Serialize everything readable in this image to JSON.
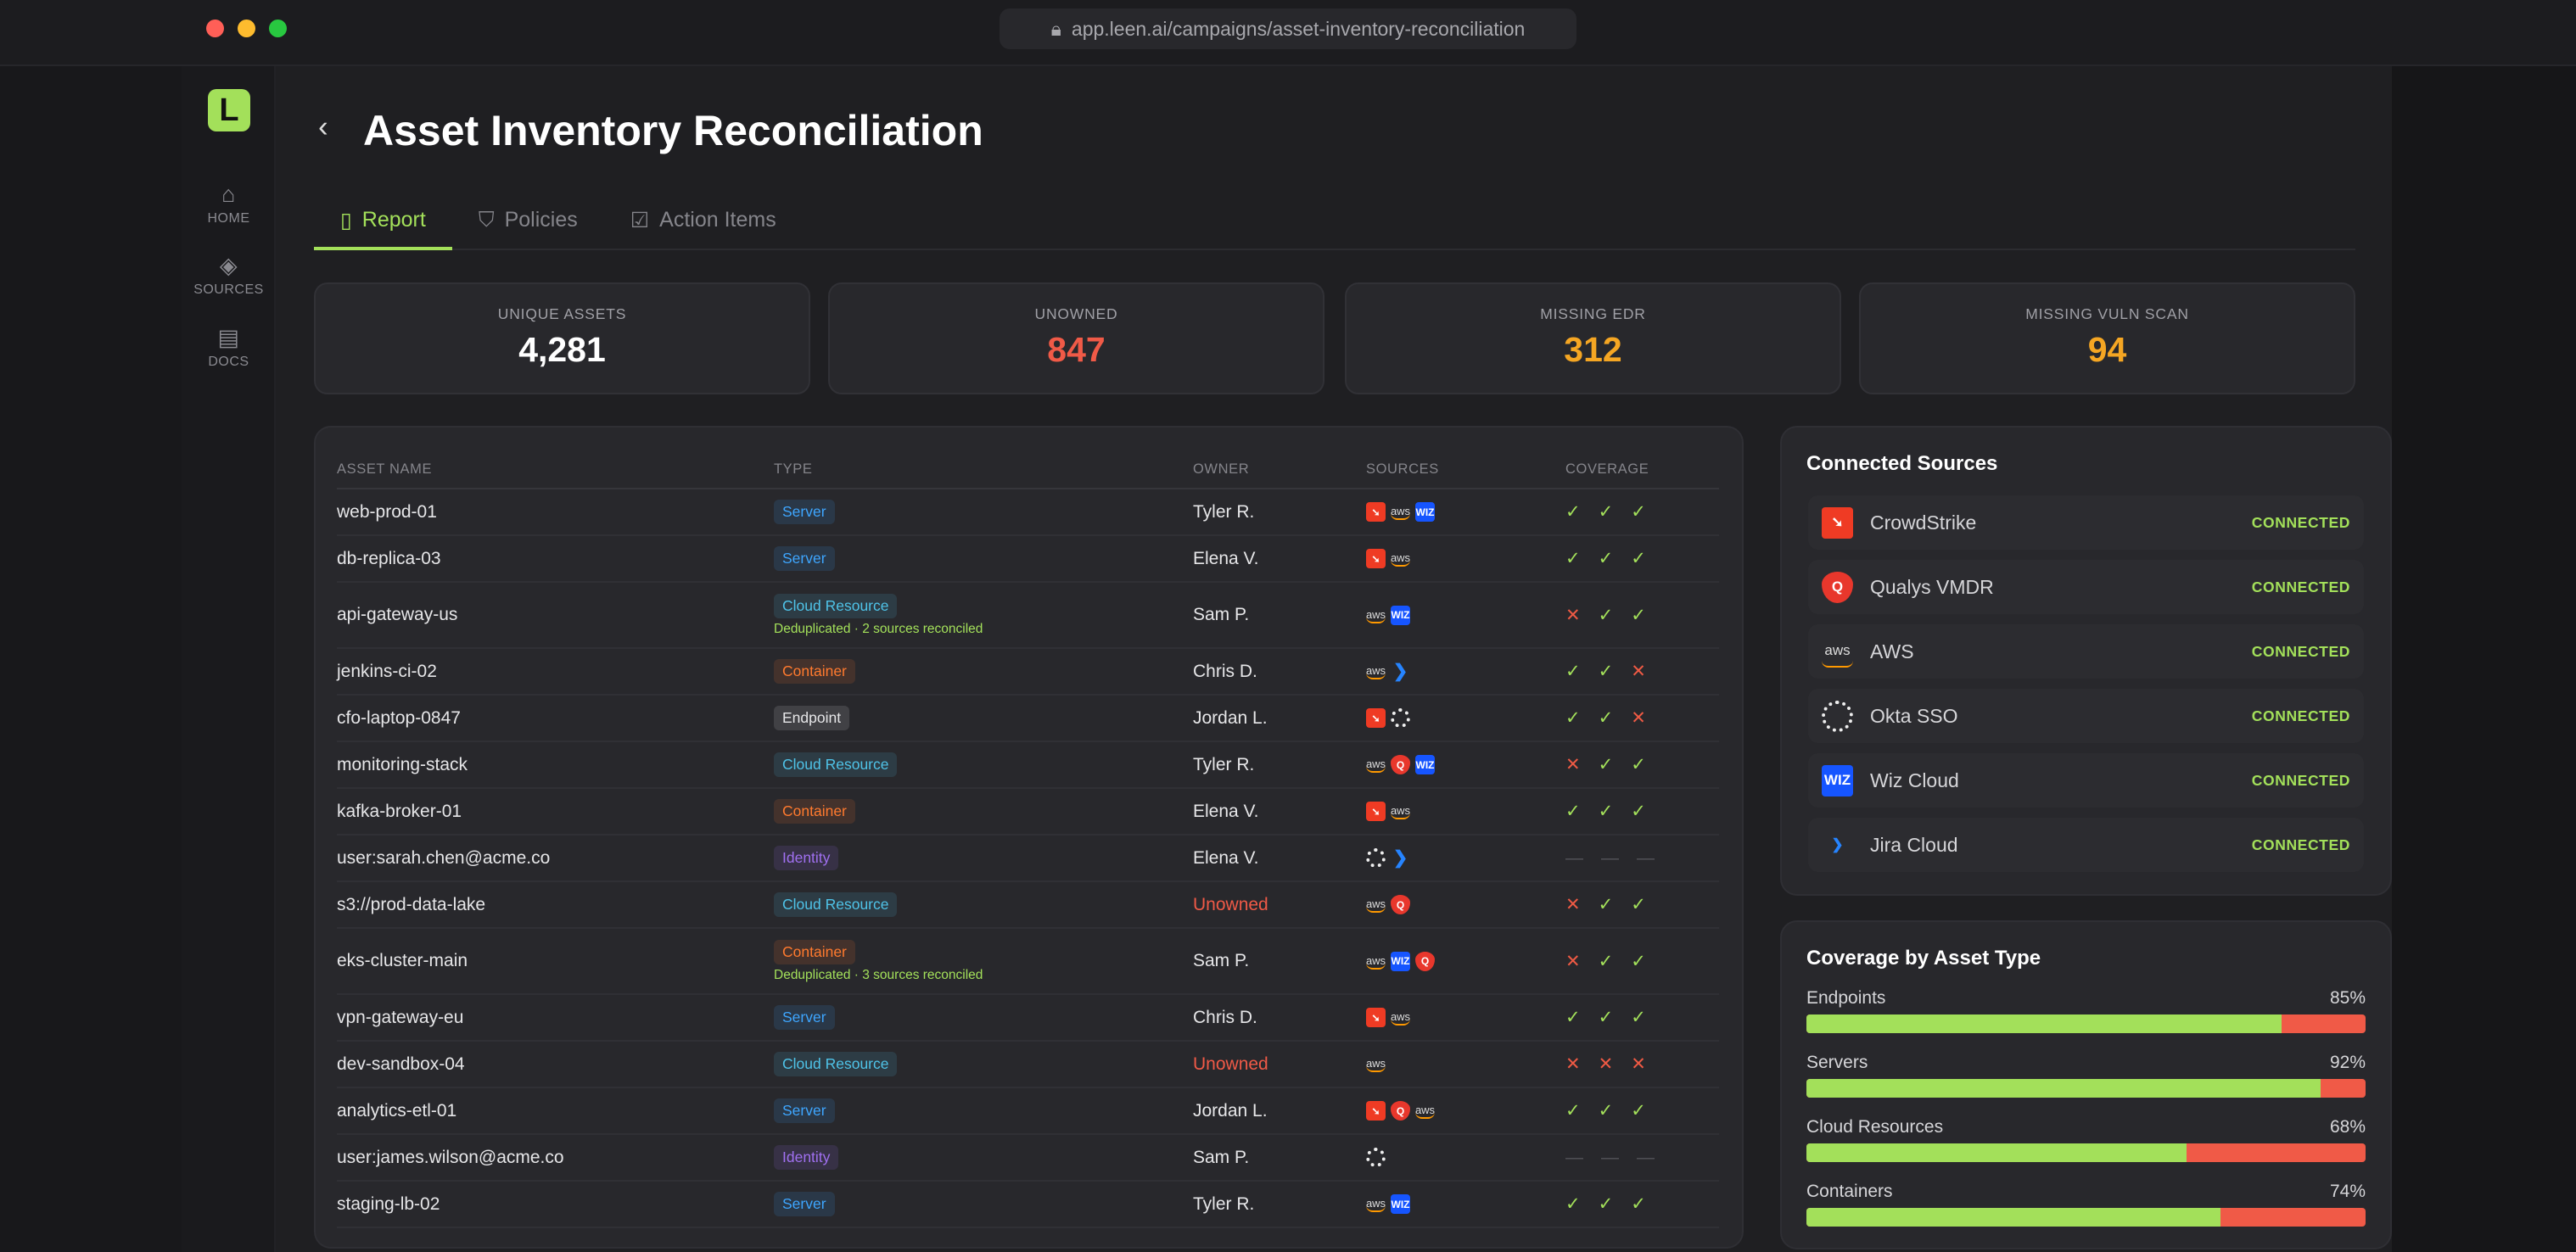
{
  "browser": {
    "url": "app.leen.ai/campaigns/asset-inventory-reconciliation"
  },
  "sidebar": {
    "logo": "L",
    "items": [
      {
        "label": "HOME",
        "icon": "home-icon"
      },
      {
        "label": "SOURCES",
        "icon": "layers-icon"
      },
      {
        "label": "DOCS",
        "icon": "document-icon"
      }
    ]
  },
  "page": {
    "title": "Asset Inventory Reconciliation"
  },
  "tabs": [
    {
      "label": "Report",
      "active": true
    },
    {
      "label": "Policies"
    },
    {
      "label": "Action Items"
    }
  ],
  "stats": [
    {
      "label": "UNIQUE ASSETS",
      "value": "4,281",
      "color": "#ffffff"
    },
    {
      "label": "UNOWNED",
      "value": "847",
      "color": "#f05a47"
    },
    {
      "label": "MISSING EDR",
      "value": "312",
      "color": "#f5a623"
    },
    {
      "label": "MISSING VULN SCAN",
      "value": "94",
      "color": "#f5a623"
    }
  ],
  "table": {
    "headers": [
      "ASSET NAME",
      "TYPE",
      "OWNER",
      "SOURCES",
      "COVERAGE"
    ],
    "rows": [
      {
        "name": "web-prod-01",
        "type": "Server",
        "owner": "Tyler R.",
        "sources": [
          "crowdstrike",
          "aws",
          "wiz"
        ],
        "coverage": [
          "ok",
          "ok",
          "ok"
        ]
      },
      {
        "name": "db-replica-03",
        "type": "Server",
        "owner": "Elena V.",
        "sources": [
          "crowdstrike",
          "aws"
        ],
        "coverage": [
          "ok",
          "ok",
          "ok"
        ]
      },
      {
        "name": "api-gateway-us",
        "type": "Cloud Resource",
        "note": "Deduplicated · 2 sources reconciled",
        "owner": "Sam P.",
        "sources": [
          "aws",
          "wiz"
        ],
        "coverage": [
          "no",
          "ok",
          "ok"
        ]
      },
      {
        "name": "jenkins-ci-02",
        "type": "Container",
        "owner": "Chris D.",
        "sources": [
          "aws",
          "jira"
        ],
        "coverage": [
          "ok",
          "ok",
          "no"
        ]
      },
      {
        "name": "cfo-laptop-0847",
        "type": "Endpoint",
        "owner": "Jordan L.",
        "sources": [
          "crowdstrike",
          "okta"
        ],
        "coverage": [
          "ok",
          "ok",
          "no"
        ]
      },
      {
        "name": "monitoring-stack",
        "type": "Cloud Resource",
        "owner": "Tyler R.",
        "sources": [
          "aws",
          "qualys",
          "wiz"
        ],
        "coverage": [
          "no",
          "ok",
          "ok"
        ]
      },
      {
        "name": "kafka-broker-01",
        "type": "Container",
        "owner": "Elena V.",
        "sources": [
          "crowdstrike",
          "aws"
        ],
        "coverage": [
          "ok",
          "ok",
          "ok"
        ]
      },
      {
        "name": "user:sarah.chen@acme.co",
        "type": "Identity",
        "owner": "Elena V.",
        "sources": [
          "okta",
          "jira"
        ],
        "coverage": [
          "na",
          "na",
          "na"
        ]
      },
      {
        "name": "s3://prod-data-lake",
        "type": "Cloud Resource",
        "owner": "Unowned",
        "sources": [
          "aws",
          "qualys"
        ],
        "coverage": [
          "no",
          "ok",
          "ok"
        ]
      },
      {
        "name": "eks-cluster-main",
        "type": "Container",
        "note": "Deduplicated · 3 sources reconciled",
        "owner": "Sam P.",
        "sources": [
          "aws",
          "wiz",
          "qualys"
        ],
        "coverage": [
          "no",
          "ok",
          "ok"
        ]
      },
      {
        "name": "vpn-gateway-eu",
        "type": "Server",
        "owner": "Chris D.",
        "sources": [
          "crowdstrike",
          "aws"
        ],
        "coverage": [
          "ok",
          "ok",
          "ok"
        ]
      },
      {
        "name": "dev-sandbox-04",
        "type": "Cloud Resource",
        "owner": "Unowned",
        "sources": [
          "aws"
        ],
        "coverage": [
          "no",
          "no",
          "no"
        ]
      },
      {
        "name": "analytics-etl-01",
        "type": "Server",
        "owner": "Jordan L.",
        "sources": [
          "crowdstrike",
          "qualys",
          "aws"
        ],
        "coverage": [
          "ok",
          "ok",
          "ok"
        ]
      },
      {
        "name": "user:james.wilson@acme.co",
        "type": "Identity",
        "owner": "Sam P.",
        "sources": [
          "okta"
        ],
        "coverage": [
          "na",
          "na",
          "na"
        ]
      },
      {
        "name": "staging-lb-02",
        "type": "Server",
        "owner": "Tyler R.",
        "sources": [
          "aws",
          "wiz"
        ],
        "coverage": [
          "ok",
          "ok",
          "ok"
        ]
      }
    ]
  },
  "type_colors": {
    "Server": "#3ea6ff",
    "Cloud Resource": "#4fc3e8",
    "Container": "#ff7a2e",
    "Endpoint": "#e6e6e8",
    "Identity": "#a070f0"
  },
  "connected_sources": {
    "title": "Connected Sources",
    "items": [
      {
        "name": "CrowdStrike",
        "icon": "crowdstrike",
        "status": "CONNECTED"
      },
      {
        "name": "Qualys VMDR",
        "icon": "qualys",
        "status": "CONNECTED"
      },
      {
        "name": "AWS",
        "icon": "aws",
        "status": "CONNECTED"
      },
      {
        "name": "Okta SSO",
        "icon": "okta",
        "status": "CONNECTED"
      },
      {
        "name": "Wiz Cloud",
        "icon": "wiz",
        "status": "CONNECTED"
      },
      {
        "name": "Jira Cloud",
        "icon": "jira",
        "status": "CONNECTED"
      }
    ]
  },
  "coverage_by_type": {
    "title": "Coverage by Asset Type",
    "items": [
      {
        "label": "Endpoints",
        "percent": 85,
        "display": "85%"
      },
      {
        "label": "Servers",
        "percent": 92,
        "display": "92%"
      },
      {
        "label": "Cloud Resources",
        "percent": 68,
        "display": "68%"
      },
      {
        "label": "Containers",
        "percent": 74,
        "display": "74%"
      }
    ]
  }
}
